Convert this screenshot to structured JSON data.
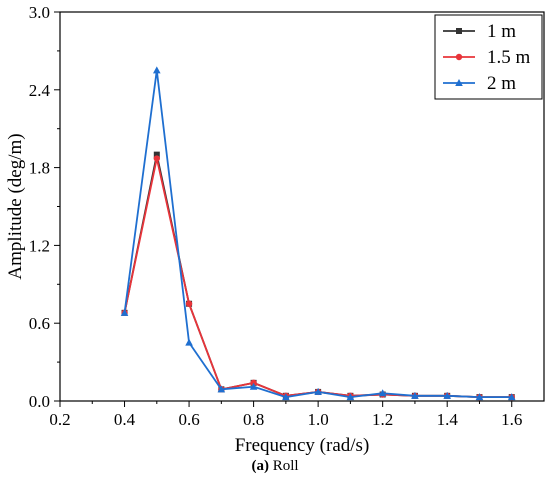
{
  "chart_data": {
    "type": "line",
    "xlabel": "Frequency (rad/s)",
    "ylabel": "Amplitude (deg/m)",
    "xlim": [
      0.2,
      1.7
    ],
    "ylim": [
      0.0,
      3.0
    ],
    "xticks": [
      "0.2",
      "0.4",
      "0.6",
      "0.8",
      "1.0",
      "1.2",
      "1.4",
      "1.6"
    ],
    "yticks": [
      "0.0",
      "0.6",
      "1.2",
      "1.8",
      "2.4",
      "3.0"
    ],
    "legend_position": "top-right",
    "grid": false,
    "x": [
      0.4,
      0.5,
      0.6,
      0.7,
      0.8,
      0.9,
      1.0,
      1.1,
      1.2,
      1.3,
      1.4,
      1.5,
      1.6
    ],
    "series": [
      {
        "name": "1 m",
        "color": "#333333",
        "marker": "square",
        "values": [
          0.68,
          1.9,
          0.75,
          0.09,
          0.14,
          0.04,
          0.07,
          0.04,
          0.05,
          0.04,
          0.04,
          0.03,
          0.03
        ]
      },
      {
        "name": "1.5 m",
        "color": "#e8343a",
        "marker": "circle",
        "values": [
          0.68,
          1.87,
          0.75,
          0.09,
          0.14,
          0.04,
          0.07,
          0.04,
          0.05,
          0.04,
          0.04,
          0.03,
          0.03
        ]
      },
      {
        "name": "2 m",
        "color": "#1f6fd0",
        "marker": "triangle",
        "values": [
          0.68,
          2.55,
          0.45,
          0.09,
          0.11,
          0.03,
          0.07,
          0.03,
          0.06,
          0.04,
          0.04,
          0.03,
          0.03
        ]
      }
    ]
  },
  "caption": {
    "label": "(a)",
    "text": " Roll"
  }
}
